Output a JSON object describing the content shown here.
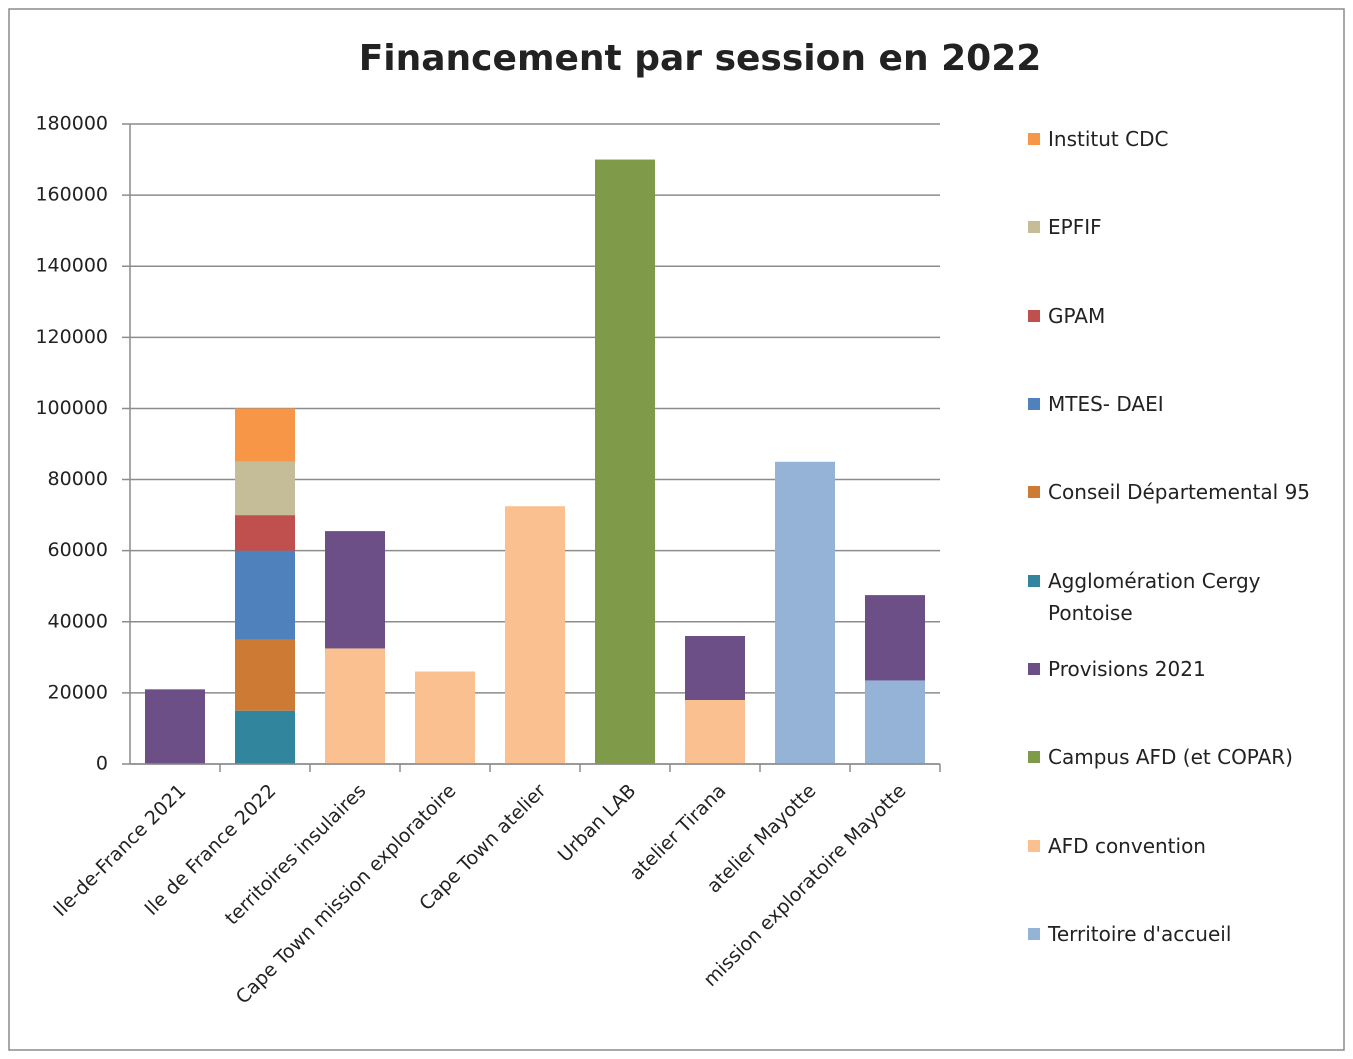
{
  "chart_data": {
    "type": "stacked_bar",
    "title": "Financement par session en 2022",
    "categories": [
      "Ile-de-France 2021",
      "Ile de France 2022",
      "territoires insulaires",
      "Cape Town mission exploratoire",
      "Cape Town atelier",
      "Urban LAB",
      "atelier Tirana",
      "atelier Mayotte",
      "mission exploratoire Mayotte"
    ],
    "series": [
      {
        "name": "Territoire d'accueil",
        "color": "#95b3d7",
        "values": [
          null,
          null,
          null,
          null,
          null,
          null,
          null,
          85000,
          23500
        ]
      },
      {
        "name": "AFD convention",
        "color": "#fac090",
        "values": [
          null,
          null,
          32500,
          26000,
          72500,
          null,
          18000,
          null,
          null
        ]
      },
      {
        "name": "Campus AFD (et COPAR)",
        "color": "#7f9a48",
        "values": [
          null,
          null,
          null,
          null,
          null,
          170000,
          null,
          null,
          null
        ]
      },
      {
        "name": "Provisions 2021",
        "color": "#6b4f86",
        "values": [
          21000,
          null,
          33000,
          null,
          null,
          null,
          18000,
          null,
          24000
        ]
      },
      {
        "name": "Agglomération Cergy Pontoise",
        "color": "#31859c",
        "values": [
          null,
          15000,
          null,
          null,
          null,
          null,
          null,
          null,
          null
        ]
      },
      {
        "name": "Conseil Départemental 95",
        "color": "#cd7a35",
        "values": [
          null,
          20000,
          null,
          null,
          null,
          null,
          null,
          null,
          null
        ]
      },
      {
        "name": "MTES- DAEI",
        "color": "#4f81bd",
        "values": [
          null,
          25000,
          null,
          null,
          null,
          null,
          null,
          null,
          null
        ]
      },
      {
        "name": "GPAM",
        "color": "#c0504d",
        "values": [
          null,
          10000,
          null,
          null,
          null,
          null,
          null,
          null,
          null
        ]
      },
      {
        "name": "EPFIF",
        "color": "#c4bd97",
        "values": [
          null,
          15000,
          null,
          null,
          null,
          null,
          null,
          null,
          null
        ]
      },
      {
        "name": "Institut CDC",
        "color": "#f79646",
        "values": [
          null,
          15000,
          null,
          null,
          null,
          null,
          null,
          null,
          null
        ]
      }
    ],
    "ylim": [
      0,
      180000
    ],
    "yticks": [
      0,
      20000,
      40000,
      60000,
      80000,
      100000,
      120000,
      140000,
      160000,
      180000
    ],
    "grid": true,
    "legend": "right"
  }
}
